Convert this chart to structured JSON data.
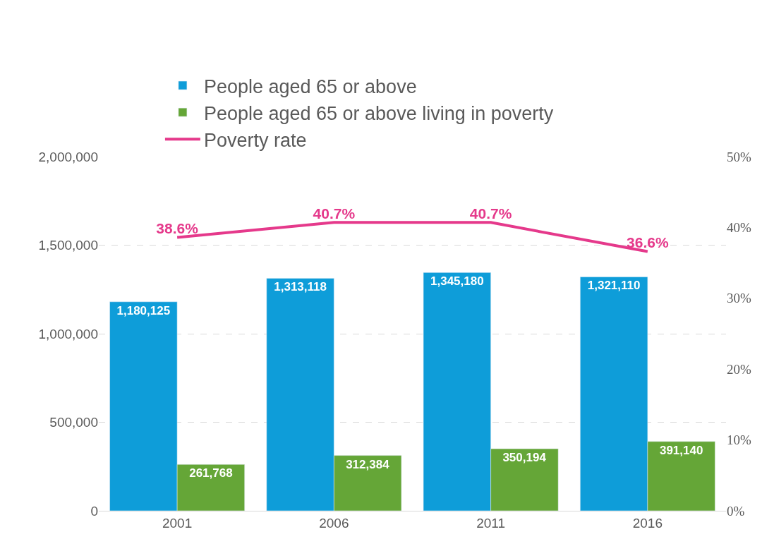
{
  "chart_data": {
    "type": "bar",
    "categories": [
      "2001",
      "2006",
      "2011",
      "2016"
    ],
    "series": [
      {
        "name": "People aged 65 or above",
        "color": "#0e9dd9",
        "values": [
          1180125,
          1313118,
          1345180,
          1321110
        ],
        "value_labels": [
          "1,180,125",
          "1,313,118",
          "1,345,180",
          "1,321,110"
        ]
      },
      {
        "name": "People aged 65 or above living in poverty",
        "color": "#65a637",
        "values": [
          261768,
          312384,
          350194,
          391140
        ],
        "value_labels": [
          "261,768",
          "312,384",
          "350,194",
          "391,140"
        ]
      },
      {
        "name": "Poverty rate",
        "type": "line",
        "axis": "y2",
        "color": "#e5398b",
        "values": [
          38.6,
          40.7,
          40.7,
          36.6
        ],
        "value_labels": [
          "38.6%",
          "40.7%",
          "40.7%",
          "36.6%"
        ],
        "marker": "none"
      }
    ],
    "ylim": [
      0,
      2000000
    ],
    "yticks": [
      {
        "value": 0,
        "label": "0"
      },
      {
        "value": 500000,
        "label": "500,000"
      },
      {
        "value": 1000000,
        "label": "1,000,000"
      },
      {
        "value": 1500000,
        "label": "1,500,000"
      },
      {
        "value": 2000000,
        "label": "2,000,000"
      }
    ],
    "y2lim": [
      0,
      50
    ],
    "y2ticks": [
      {
        "value": 0,
        "label": "0%"
      },
      {
        "value": 10,
        "label": "10%"
      },
      {
        "value": 20,
        "label": "20%"
      },
      {
        "value": 30,
        "label": "30%"
      },
      {
        "value": 40,
        "label": "40%"
      },
      {
        "value": 50,
        "label": "50%"
      }
    ],
    "grid": "y",
    "legend": "top"
  }
}
